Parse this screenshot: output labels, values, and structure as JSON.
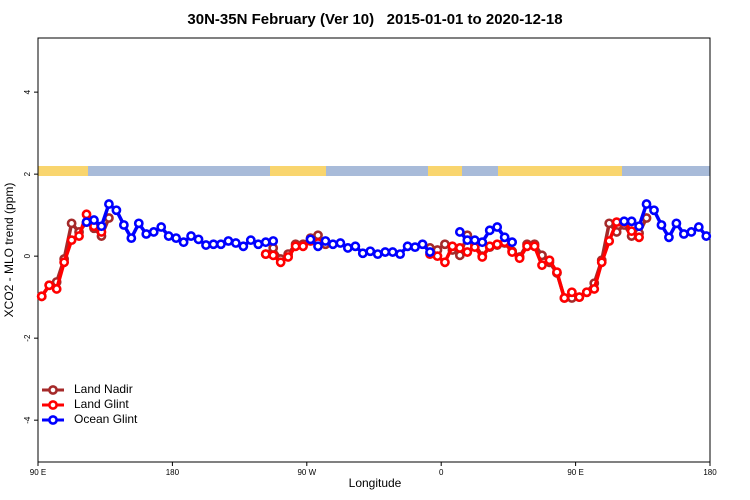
{
  "chart_data": {
    "type": "line",
    "title": "30N-35N February (Ver 10)   2015-01-01 to 2020-12-18",
    "xlabel": "Longitude",
    "ylabel": "XCO2 - MLO trend (ppm)",
    "xlim": [
      90,
      540
    ],
    "ylim": [
      -5.02,
      5.32
    ],
    "xticks": [
      {
        "value": 90,
        "label": "90 E"
      },
      180,
      {
        "value": 270,
        "label": "90 W"
      },
      {
        "value": 360,
        "label": "0"
      },
      {
        "value": 450,
        "label": "90 E"
      },
      {
        "value": 540,
        "label": "180"
      }
    ],
    "yticks": [
      -4,
      -2,
      0,
      2,
      4
    ],
    "grid": false,
    "legend": "bottomleft",
    "series": [
      {
        "name": "Land Nadir",
        "color": "#a52a2a",
        "x": [
          92.5,
          97.5,
          102.5,
          107.5,
          112.5,
          117.5,
          122.5,
          127.5,
          132.5,
          137.5,
          142.5,
          242.5,
          247.5,
          252.5,
          257.5,
          262.5,
          267.5,
          272.5,
          277.5,
          282.5,
          287.5,
          352.5,
          357.5,
          362.5,
          367.5,
          372.5,
          377.5,
          382.5,
          387.5,
          392.5,
          397.5,
          402.5,
          407.5,
          412.5,
          417.5,
          422.5,
          427.5,
          432.5,
          437.5,
          442.5,
          447.5,
          452.5,
          457.5,
          462.5,
          467.5,
          472.5,
          477.5,
          482.5,
          487.5,
          492.5,
          497.5
        ],
        "values": [
          -0.98,
          -0.71,
          -0.63,
          -0.07,
          0.8,
          0.59,
          0.83,
          0.68,
          0.49,
          0.93,
          null,
          0.05,
          0.2,
          -0.07,
          0.05,
          0.29,
          0.29,
          0.44,
          0.51,
          0.29,
          null,
          0.2,
          0.15,
          0.29,
          0.15,
          0.02,
          0.51,
          0.29,
          0.0,
          0.22,
          0.27,
          0.32,
          0.12,
          -0.02,
          0.29,
          0.29,
          0.02,
          -0.15,
          -0.41,
          -1.02,
          -1.02,
          -1.0,
          -0.88,
          -0.66,
          -0.1,
          0.8,
          0.59,
          0.76,
          0.49,
          0.56,
          0.93
        ]
      },
      {
        "name": "Land Glint",
        "color": "#ff0000",
        "x": [
          92.5,
          97.5,
          102.5,
          107.5,
          112.5,
          117.5,
          122.5,
          127.5,
          132.5,
          137.5,
          242.5,
          247.5,
          252.5,
          257.5,
          262.5,
          267.5,
          272.5,
          277.5,
          282.5,
          352.5,
          357.5,
          362.5,
          367.5,
          372.5,
          377.5,
          382.5,
          387.5,
          392.5,
          397.5,
          402.5,
          407.5,
          412.5,
          417.5,
          422.5,
          427.5,
          432.5,
          437.5,
          442.5,
          447.5,
          452.5,
          457.5,
          462.5,
          467.5,
          472.5,
          477.5,
          482.5,
          487.5,
          492.5
        ],
        "values": [
          -0.98,
          -0.71,
          -0.8,
          -0.15,
          0.39,
          0.49,
          1.02,
          0.73,
          0.59,
          null,
          0.05,
          0.02,
          -0.15,
          -0.02,
          0.24,
          0.24,
          0.37,
          0.32,
          null,
          0.05,
          0.0,
          -0.15,
          0.24,
          0.2,
          0.1,
          0.22,
          -0.02,
          0.24,
          0.29,
          0.34,
          0.1,
          -0.05,
          0.24,
          0.24,
          -0.22,
          -0.1,
          -0.39,
          -1.02,
          -0.88,
          -1.0,
          -0.88,
          -0.8,
          -0.15,
          0.37,
          0.83,
          0.83,
          0.61,
          0.46
        ]
      },
      {
        "name": "Ocean Glint",
        "color": "#0000ff",
        "x": [
          122.5,
          127.5,
          132.5,
          137.5,
          142.5,
          147.5,
          152.5,
          157.5,
          162.5,
          167.5,
          172.5,
          177.5,
          182.5,
          187.5,
          192.5,
          197.5,
          202.5,
          207.5,
          212.5,
          217.5,
          222.5,
          227.5,
          232.5,
          237.5,
          242.5,
          247.5,
          252.5,
          272.5,
          277.5,
          282.5,
          287.5,
          292.5,
          297.5,
          302.5,
          307.5,
          312.5,
          317.5,
          322.5,
          327.5,
          332.5,
          337.5,
          342.5,
          347.5,
          352.5,
          357.5,
          372.5,
          377.5,
          382.5,
          387.5,
          392.5,
          397.5,
          402.5,
          407.5,
          412.5,
          482.5,
          487.5,
          492.5,
          497.5,
          502.5,
          507.5,
          512.5,
          517.5,
          522.5,
          527.5,
          532.5,
          537.5
        ],
        "values": [
          0.83,
          0.88,
          0.73,
          1.27,
          1.12,
          0.76,
          0.44,
          0.8,
          0.54,
          0.59,
          0.71,
          0.49,
          0.44,
          0.34,
          0.49,
          0.41,
          0.27,
          0.29,
          0.29,
          0.37,
          0.32,
          0.24,
          0.39,
          0.29,
          0.34,
          0.37,
          null,
          0.41,
          0.24,
          0.37,
          0.29,
          0.32,
          0.2,
          0.24,
          0.07,
          0.12,
          0.05,
          0.1,
          0.1,
          0.05,
          0.24,
          0.22,
          0.29,
          0.1,
          null,
          0.59,
          0.39,
          0.39,
          0.34,
          0.63,
          0.71,
          0.46,
          0.34,
          null,
          0.85,
          0.85,
          0.73,
          1.27,
          1.12,
          0.76,
          0.46,
          0.8,
          0.54,
          0.59,
          0.71,
          0.49
        ]
      }
    ]
  }
}
